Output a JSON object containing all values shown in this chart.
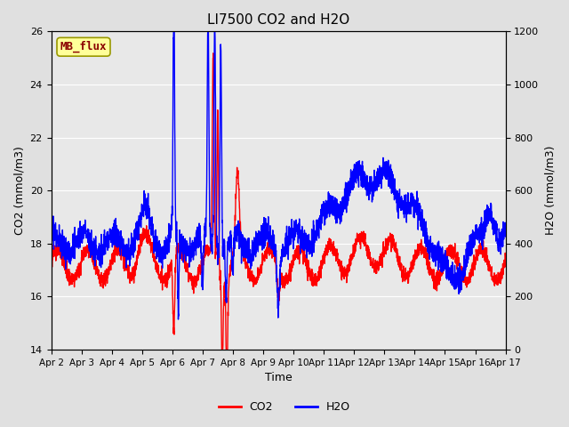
{
  "title": "LI7500 CO2 and H2O",
  "xlabel": "Time",
  "ylabel_left": "CO2 (mmol/m3)",
  "ylabel_right": "H2O (mmol/m3)",
  "ylim_left": [
    14,
    26
  ],
  "ylim_right": [
    0,
    1200
  ],
  "yticks_left": [
    14,
    16,
    18,
    20,
    22,
    24,
    26
  ],
  "yticks_right": [
    0,
    200,
    400,
    600,
    800,
    1000,
    1200
  ],
  "xtick_labels": [
    "Apr 2",
    "Apr 3",
    "Apr 4",
    "Apr 5",
    "Apr 6",
    "Apr 7",
    "Apr 8",
    "Apr 9",
    "Apr 10",
    "Apr 11",
    "Apr 12",
    "Apr 13",
    "Apr 14",
    "Apr 15",
    "Apr 16",
    "Apr 17"
  ],
  "watermark_text": "MB_flux",
  "watermark_fg": "#8B0000",
  "watermark_bg": "#FFFF99",
  "fig_bg_color": "#E0E0E0",
  "plot_bg_color": "#E8E8E8",
  "grid_color": "#FFFFFF",
  "co2_color": "#FF0000",
  "h2o_color": "#0000FF",
  "line_width": 1.0,
  "n_points": 3000
}
